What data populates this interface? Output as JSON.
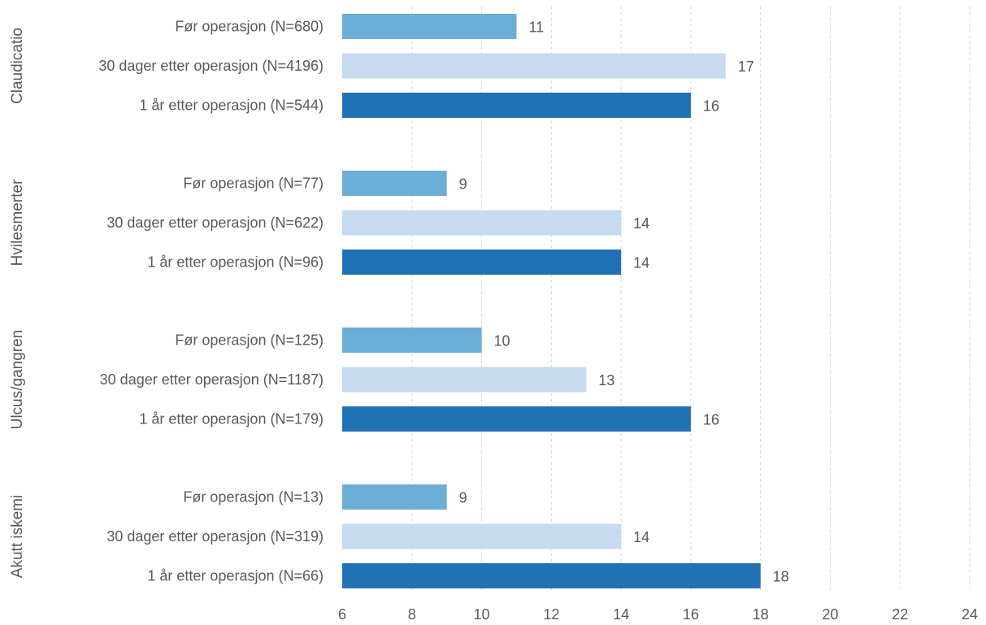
{
  "chart_data": {
    "type": "bar",
    "orientation": "horizontal",
    "title": "",
    "xlabel": "",
    "ylabel": "",
    "xlim": [
      6,
      24
    ],
    "xticks": [
      6,
      8,
      10,
      12,
      14,
      16,
      18,
      20,
      22,
      24
    ],
    "grid": true,
    "legend": "none",
    "colors": {
      "before": "#6baed6",
      "30days": "#c6dbef",
      "1year": "#2171b5",
      "text": "#595959",
      "grid": "#d9d9d9"
    },
    "groups": [
      {
        "name": "Claudicatio",
        "bars": [
          {
            "label": "Før operasjon (N=680)",
            "value": 11,
            "kind": "before"
          },
          {
            "label": "30 dager etter operasjon (N=4196)",
            "value": 17,
            "kind": "30days"
          },
          {
            "label": "1 år etter operasjon (N=544)",
            "value": 16,
            "kind": "1year"
          }
        ]
      },
      {
        "name": "Hvilesmerter",
        "bars": [
          {
            "label": "Før operasjon (N=77)",
            "value": 9,
            "kind": "before"
          },
          {
            "label": "30 dager etter operasjon (N=622)",
            "value": 14,
            "kind": "30days"
          },
          {
            "label": "1 år etter operasjon (N=96)",
            "value": 14,
            "kind": "1year"
          }
        ]
      },
      {
        "name": "Ulcus/gangren",
        "bars": [
          {
            "label": "Før operasjon (N=125)",
            "value": 10,
            "kind": "before"
          },
          {
            "label": "30 dager etter operasjon (N=1187)",
            "value": 13,
            "kind": "30days"
          },
          {
            "label": "1 år etter operasjon (N=179)",
            "value": 16,
            "kind": "1year"
          }
        ]
      },
      {
        "name": "Akutt iskemi",
        "bars": [
          {
            "label": "Før operasjon (N=13)",
            "value": 9,
            "kind": "before"
          },
          {
            "label": "30 dager etter operasjon (N=319)",
            "value": 14,
            "kind": "30days"
          },
          {
            "label": "1 år etter operasjon (N=66)",
            "value": 18,
            "kind": "1year"
          }
        ]
      }
    ]
  }
}
